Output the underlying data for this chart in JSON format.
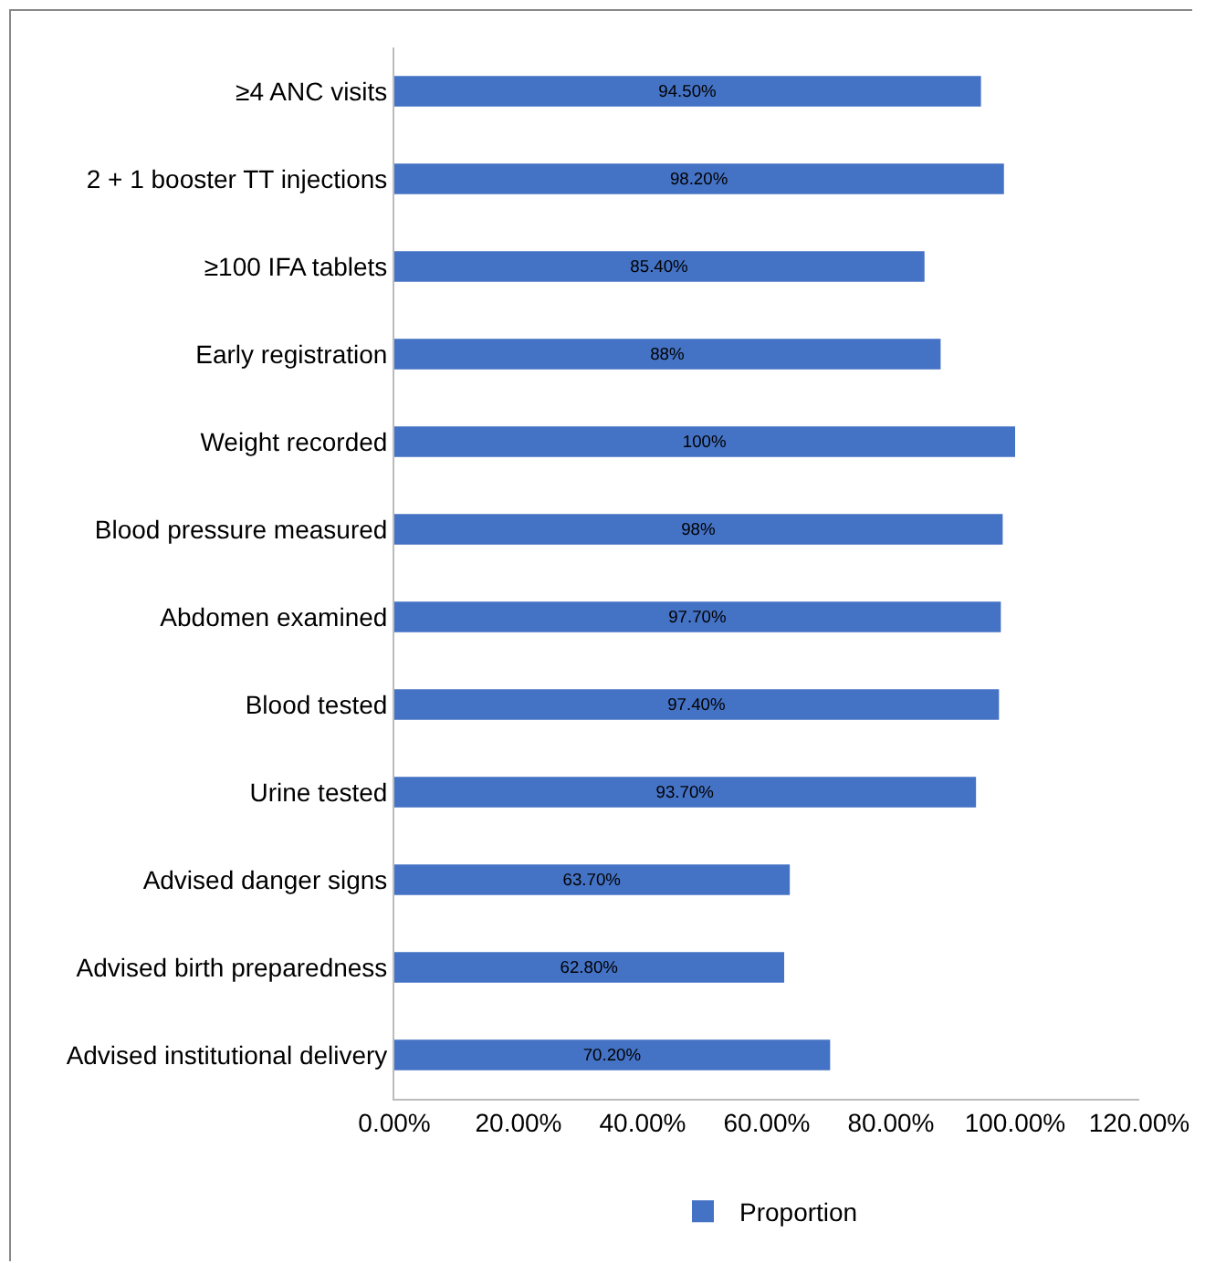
{
  "chart_data": {
    "type": "bar",
    "orientation": "horizontal",
    "categories": [
      "≥4 ANC visits",
      "2 + 1 booster TT injections",
      "≥100 IFA tablets",
      "Early registration",
      "Weight recorded",
      "Blood pressure measured",
      "Abdomen examined",
      "Blood tested",
      "Urine tested",
      "Advised danger signs",
      "Advised birth preparedness",
      "Advised institutional delivery"
    ],
    "series": [
      {
        "name": "Proportion",
        "color": "#4472c4",
        "values": [
          94.5,
          98.2,
          85.4,
          88,
          100,
          98,
          97.7,
          97.4,
          93.7,
          63.7,
          62.8,
          70.2
        ],
        "value_labels": [
          "94.50%",
          "98.20%",
          "85.40%",
          "88%",
          "100%",
          "98%",
          "97.70%",
          "97.40%",
          "93.70%",
          "63.70%",
          "62.80%",
          "70.20%"
        ]
      }
    ],
    "xlim": [
      0,
      120
    ],
    "xticks": [
      {
        "value": 0,
        "label": "0.00%"
      },
      {
        "value": 20,
        "label": "20.00%"
      },
      {
        "value": 40,
        "label": "40.00%"
      },
      {
        "value": 60,
        "label": "60.00%"
      },
      {
        "value": 80,
        "label": "80.00%"
      },
      {
        "value": 100,
        "label": "100.00%"
      },
      {
        "value": 120,
        "label": "120.00%"
      }
    ],
    "grid": false,
    "legend": "bottom"
  }
}
